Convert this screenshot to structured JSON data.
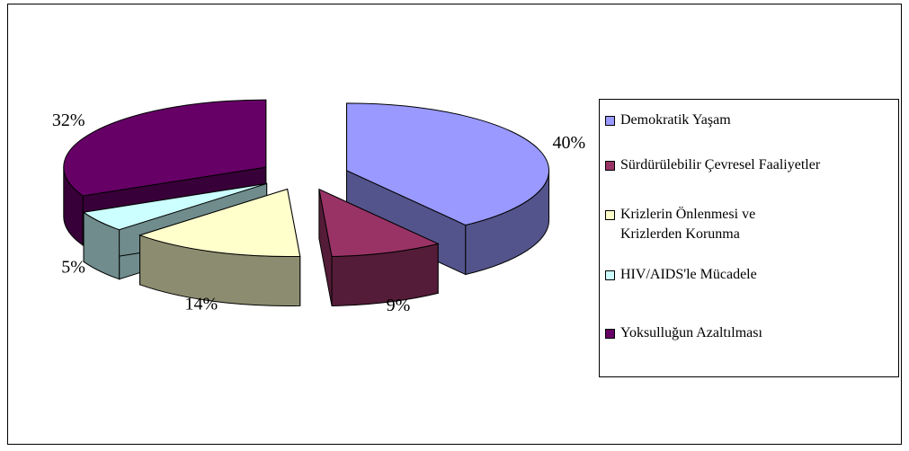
{
  "chart_data": {
    "type": "pie",
    "categories": [
      "Demokratik Yaşam",
      "Sürdürülebilir Çevresel Faaliyetler",
      "Krizlerin Önlenmesi ve\nKrizlerden Korunma",
      "HIV/AIDS'le Mücadele",
      "Yoksulluğun Azaltılması"
    ],
    "values": [
      40,
      9,
      14,
      5,
      32
    ],
    "value_labels": [
      "40%",
      "9%",
      "14%",
      "5%",
      "32%"
    ],
    "colors": [
      "#9999ff",
      "#993366",
      "#ffffcc",
      "#ccffff",
      "#660066"
    ],
    "legend": "right"
  }
}
